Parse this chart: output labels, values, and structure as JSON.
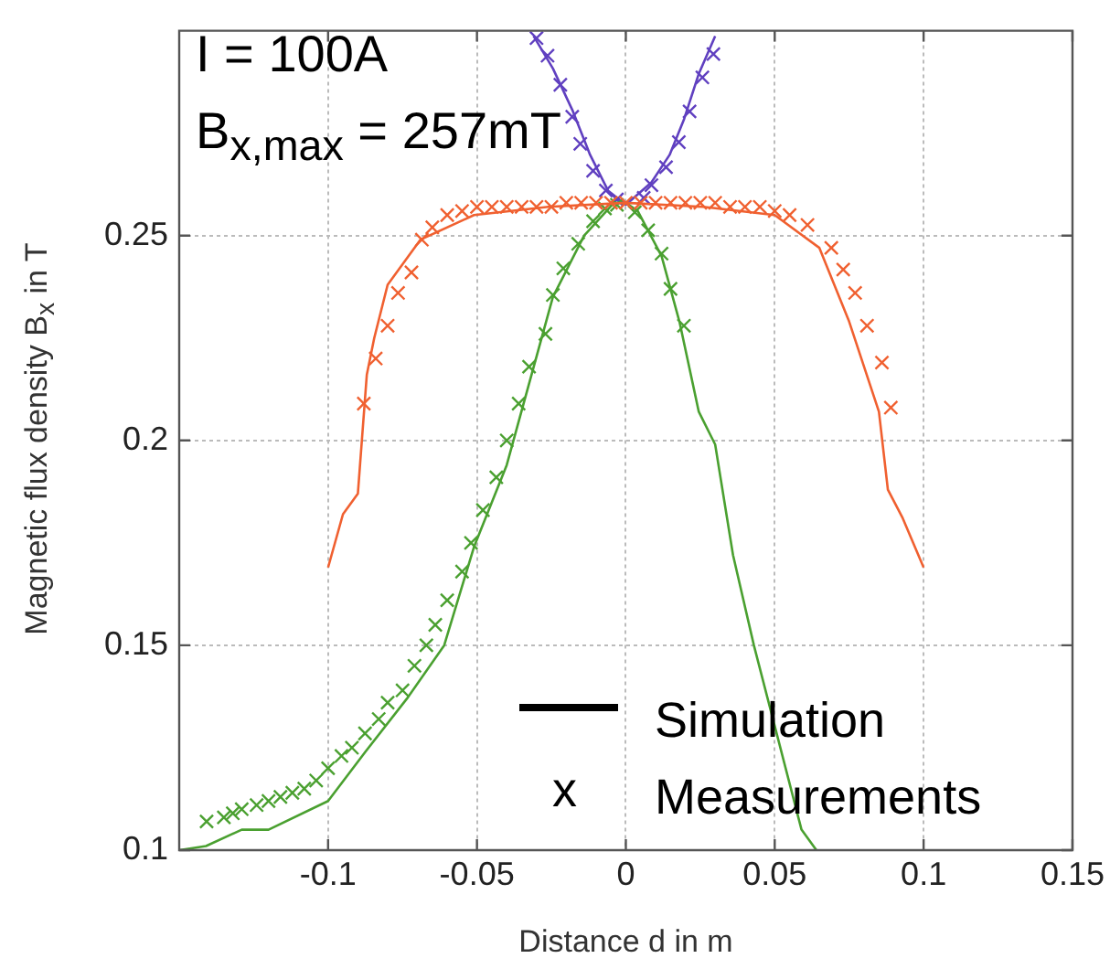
{
  "chart_data": {
    "type": "line",
    "xlabel": "Distance d in m",
    "ylabel": "Magnetic flux density B$_{x}$ in T",
    "annotations": [
      "I = 100A",
      "B$_{x,max}$ = 257mT",
      "Simulation",
      "x",
      "Measurements"
    ],
    "xlim": [
      -0.15,
      0.15
    ],
    "xticks": [
      -0.1,
      -0.05,
      0,
      0.05,
      0.1,
      0.15
    ],
    "ylim": [
      0.1,
      0.3
    ],
    "yticks": [
      0.1,
      0.15,
      0.2,
      0.25
    ],
    "grid": true,
    "legend": false,
    "series": [
      {
        "type": "line",
        "marker": "none",
        "color": "#f06030",
        "x": [
          -0.1,
          -0.095,
          -0.09,
          -0.087,
          -0.0845,
          -0.08,
          -0.069,
          -0.051,
          -0.026,
          0,
          0.026,
          0.05,
          0.065,
          0.075,
          0.085,
          0.088,
          0.093,
          0.1
        ],
        "values": [
          0.169,
          0.182,
          0.187,
          0.216,
          0.225,
          0.238,
          0.249,
          0.255,
          0.257,
          0.258,
          0.257,
          0.255,
          0.247,
          0.229,
          0.207,
          0.188,
          0.181,
          0.169
        ]
      },
      {
        "type": "scatter",
        "marker": "cross",
        "color": "#f06030",
        "x": [
          -0.088,
          -0.084,
          -0.08,
          -0.0765,
          -0.072,
          -0.0685,
          -0.065,
          -0.06,
          -0.055,
          -0.05,
          -0.045,
          -0.04,
          -0.035,
          -0.03,
          -0.025,
          -0.02,
          -0.015,
          -0.01,
          -0.005,
          0,
          0.005,
          0.01,
          0.015,
          0.02,
          0.025,
          0.03,
          0.035,
          0.04,
          0.045,
          0.05,
          0.055,
          0.061,
          0.069,
          0.073,
          0.077,
          0.081,
          0.086,
          0.089
        ],
        "values": [
          0.209,
          0.22,
          0.228,
          0.236,
          0.241,
          0.249,
          0.252,
          0.255,
          0.256,
          0.257,
          0.257,
          0.257,
          0.257,
          0.257,
          0.257,
          0.258,
          0.258,
          0.258,
          0.258,
          0.258,
          0.258,
          0.258,
          0.258,
          0.258,
          0.258,
          0.258,
          0.257,
          0.257,
          0.257,
          0.256,
          0.255,
          0.2526,
          0.247,
          0.2417,
          0.236,
          0.228,
          0.219,
          0.208
        ]
      },
      {
        "type": "line",
        "marker": "none",
        "color": "#4aa030",
        "x": [
          -0.15,
          -0.141,
          -0.129,
          -0.12,
          -0.1,
          -0.0875,
          -0.0735,
          -0.061,
          -0.051,
          -0.04,
          -0.0245,
          -0.014,
          -0.004,
          0,
          0.004,
          0.012,
          0.018,
          0.0245,
          0.03,
          0.034,
          0.036,
          0.043,
          0.059,
          0.064
        ],
        "values": [
          0.1,
          0.101,
          0.105,
          0.105,
          0.112,
          0.124,
          0.137,
          0.15,
          0.174,
          0.194,
          0.235,
          0.25,
          0.258,
          0.258,
          0.256,
          0.245,
          0.229,
          0.207,
          0.199,
          0.181,
          0.172,
          0.15,
          0.105,
          0.1
        ]
      },
      {
        "type": "scatter",
        "marker": "cross",
        "color": "#4aa030",
        "x": [
          -0.1408,
          -0.135,
          -0.132,
          -0.129,
          -0.124,
          -0.12,
          -0.116,
          -0.112,
          -0.108,
          -0.104,
          -0.1,
          -0.0955,
          -0.092,
          -0.0876,
          -0.083,
          -0.08,
          -0.075,
          -0.071,
          -0.067,
          -0.064,
          -0.06,
          -0.055,
          -0.052,
          -0.048,
          -0.0435,
          -0.04,
          -0.036,
          -0.0325,
          -0.027,
          -0.0245,
          -0.021,
          -0.016,
          -0.011,
          -0.007,
          -0.003,
          0.003,
          0.0075,
          0.012,
          0.015,
          0.0195
        ],
        "values": [
          0.107,
          0.108,
          0.109,
          0.11,
          0.111,
          0.112,
          0.113,
          0.114,
          0.115,
          0.117,
          0.12,
          0.123,
          0.125,
          0.1285,
          0.132,
          0.136,
          0.139,
          0.145,
          0.15,
          0.155,
          0.161,
          0.168,
          0.175,
          0.183,
          0.191,
          0.2,
          0.209,
          0.218,
          0.226,
          0.2355,
          0.242,
          0.248,
          0.2535,
          0.2566,
          0.2575,
          0.2557,
          0.2513,
          0.2456,
          0.237,
          0.228
        ]
      },
      {
        "type": "line",
        "marker": "none",
        "color": "#6040c0",
        "x": [
          -0.031,
          -0.0245,
          -0.018,
          -0.012,
          -0.006,
          0,
          0.0086,
          0.0147,
          0.0196,
          0.0245,
          0.03
        ],
        "values": [
          0.2987,
          0.2908,
          0.2807,
          0.2697,
          0.261,
          0.2575,
          0.263,
          0.2697,
          0.2785,
          0.2895,
          0.2987
        ]
      },
      {
        "type": "scatter",
        "marker": "cross",
        "color": "#6040c0",
        "x": [
          -0.03,
          -0.0263,
          -0.022,
          -0.018,
          -0.0153,
          -0.011,
          -0.0067,
          -0.003,
          0.006,
          0.0086,
          0.0135,
          0.0178,
          0.0214,
          0.0257,
          0.0294
        ],
        "values": [
          0.2982,
          0.2939,
          0.2868,
          0.279,
          0.2724,
          0.2658,
          0.261,
          0.2588,
          0.2592,
          0.2623,
          0.2667,
          0.2728,
          0.2803,
          0.2886,
          0.2943
        ]
      }
    ]
  }
}
